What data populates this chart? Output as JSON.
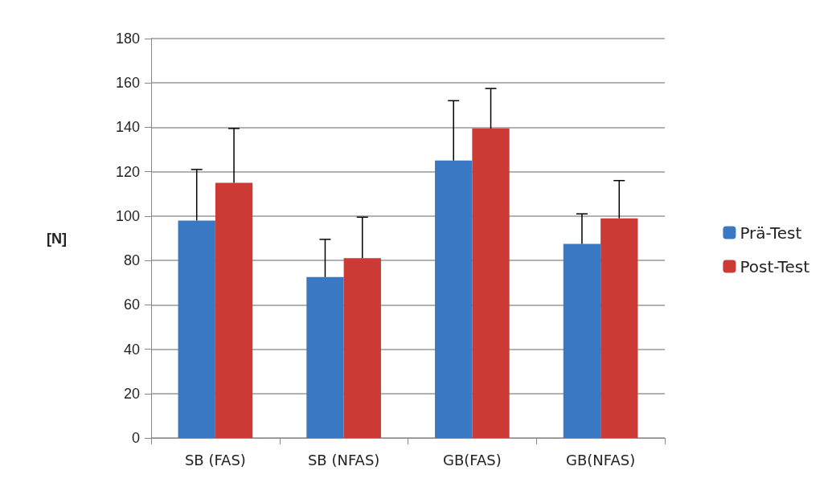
{
  "chart_data": {
    "type": "bar",
    "ylabel": "[N]",
    "categories": [
      "SB (FAS)",
      "SB (NFAS)",
      "GB(FAS)",
      "GB(NFAS)"
    ],
    "series": [
      {
        "name": "Prä-Test",
        "color": "#3a78c4",
        "values": [
          98,
          72.5,
          125,
          87.5
        ],
        "errors": [
          [
            98,
            121
          ],
          [
            72.5,
            89.5
          ],
          [
            125,
            152
          ],
          [
            87.5,
            101
          ]
        ]
      },
      {
        "name": "Post-Test",
        "color": "#cc3a36",
        "values": [
          115,
          81,
          139.5,
          99
        ],
        "errors": [
          [
            115,
            139.5
          ],
          [
            81,
            99.5
          ],
          [
            139.5,
            157.5
          ],
          [
            99,
            116
          ]
        ]
      }
    ],
    "ylim": [
      0,
      180
    ],
    "yticks": [
      0,
      20,
      40,
      60,
      80,
      100,
      120,
      140,
      160,
      180
    ],
    "grid": "y",
    "legend": "right"
  }
}
